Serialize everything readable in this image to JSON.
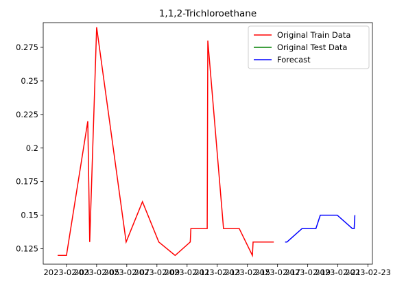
{
  "chart_data": {
    "type": "line",
    "title": "1,1,2-Trichloroethane",
    "series": [
      {
        "name": "Original Train Data",
        "color": "#ff0000",
        "x": [
          "2023-02-02T10:00",
          "2023-02-03T00:00",
          "2023-02-04T10:00",
          "2023-02-04T13:00",
          "2023-02-05T00:00",
          "2023-02-06T23:00",
          "2023-02-08T01:00",
          "2023-02-09T03:00",
          "2023-02-10T05:00",
          "2023-02-11T05:00",
          "2023-02-11T06:00",
          "2023-02-12T08:00",
          "2023-02-12T09:00",
          "2023-02-13T10:00",
          "2023-02-14T11:00",
          "2023-02-15T08:00",
          "2023-02-15T09:00",
          "2023-02-16T18:00"
        ],
        "values": [
          0.12,
          0.12,
          0.22,
          0.13,
          0.29,
          0.13,
          0.16,
          0.13,
          0.12,
          0.13,
          0.14,
          0.14,
          0.28,
          0.14,
          0.14,
          0.12,
          0.13,
          0.13
        ]
      },
      {
        "name": "Original Test Data",
        "color": "#008000",
        "x": [],
        "values": []
      },
      {
        "name": "Forecast",
        "color": "#0000ff",
        "x": [
          "2023-02-17T12:00",
          "2023-02-17T15:00",
          "2023-02-18T15:00",
          "2023-02-19T13:00",
          "2023-02-19T20:00",
          "2023-02-20T23:00",
          "2023-02-21T23:00",
          "2023-02-22T02:00",
          "2023-02-22T03:00"
        ],
        "values": [
          0.13,
          0.13,
          0.14,
          0.14,
          0.15,
          0.15,
          0.14,
          0.14,
          0.15
        ]
      }
    ],
    "xlim": [
      "2023-02-01T11:00",
      "2023-02-23T07:00"
    ],
    "xticks": [
      "2023-02-03",
      "2023-02-05",
      "2023-02-07",
      "2023-02-09",
      "2023-02-11",
      "2023-02-13",
      "2023-02-15",
      "2023-02-17",
      "2023-02-19",
      "2023-02-21",
      "2023-02-23"
    ],
    "ylim": [
      0.1135,
      0.2934
    ],
    "yticks": [
      0.125,
      0.15,
      0.175,
      0.2,
      0.225,
      0.25,
      0.275
    ],
    "legend": "upper right"
  }
}
